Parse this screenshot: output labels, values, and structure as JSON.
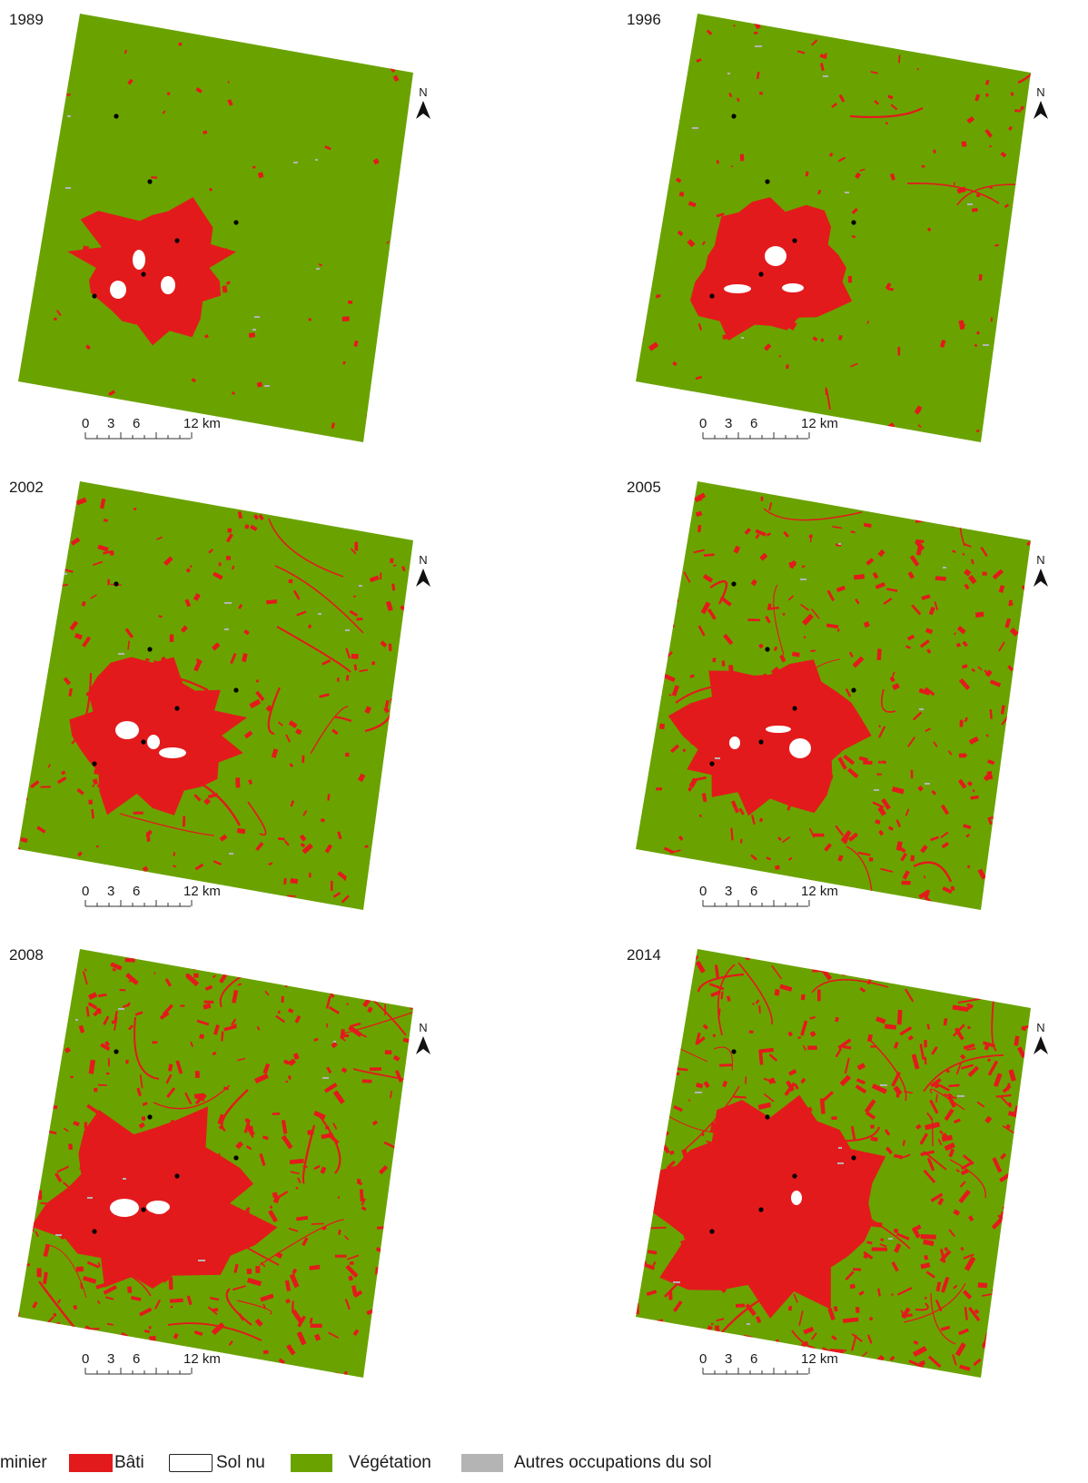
{
  "colors": {
    "vegetation": "#6aa300",
    "bati": "#e31a1c",
    "sol_nu": "#ffffff",
    "autres": "#b4b4b4",
    "minier_point": "#000000"
  },
  "north_label": "N",
  "scale": {
    "ticks": [
      "0",
      "3",
      "6",
      "12 km"
    ]
  },
  "panels": [
    {
      "year": "1989",
      "urban_extent": 0.34
    },
    {
      "year": "1996",
      "urban_extent": 0.37
    },
    {
      "year": "2002",
      "urban_extent": 0.42
    },
    {
      "year": "2005",
      "urban_extent": 0.44
    },
    {
      "year": "2008",
      "urban_extent": 0.55
    },
    {
      "year": "2014",
      "urban_extent": 0.66
    }
  ],
  "legend": {
    "items": [
      {
        "key": "minier",
        "label": "minier",
        "icon": "black-point-icon"
      },
      {
        "key": "bati",
        "label": "Bâti",
        "icon": "red-swatch"
      },
      {
        "key": "sol_nu",
        "label": "Sol nu",
        "icon": "white-swatch"
      },
      {
        "key": "vegetation",
        "label": "Végétation",
        "icon": "green-swatch"
      },
      {
        "key": "autres",
        "label": "Autres occupations du sol",
        "icon": "grey-swatch"
      }
    ]
  }
}
